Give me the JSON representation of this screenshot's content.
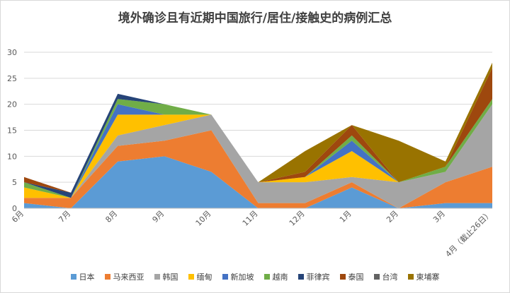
{
  "chart_data": {
    "type": "area",
    "stacked": true,
    "title": "境外确诊且有近期中国旅行/居住/接触史的病例汇总",
    "xlabel": "",
    "ylabel": "",
    "ylim": [
      0,
      30
    ],
    "yticks": [
      "0",
      "5",
      "10",
      "15",
      "20",
      "25",
      "30"
    ],
    "grid": true,
    "legend_position": "bottom",
    "categories": [
      "6月",
      "7月",
      "8月",
      "9月",
      "10月",
      "11月",
      "12月",
      "1月",
      "2月",
      "3月",
      "4月（截止26日）"
    ],
    "series": [
      {
        "name": "日本",
        "color": "#5b9bd5",
        "values": [
          1,
          0,
          9,
          10,
          7,
          0,
          0,
          4,
          0,
          1,
          1
        ]
      },
      {
        "name": "马来西亚",
        "color": "#ed7d31",
        "values": [
          1,
          2,
          3,
          3,
          8,
          1,
          1,
          1,
          0,
          4,
          7
        ]
      },
      {
        "name": "韩国",
        "color": "#a5a5a5",
        "values": [
          0,
          0,
          2,
          3,
          3,
          4,
          4,
          1,
          5,
          2,
          12
        ]
      },
      {
        "name": "缅甸",
        "color": "#ffc000",
        "values": [
          2,
          0,
          4,
          2,
          0,
          0,
          1,
          5,
          0,
          0,
          0
        ]
      },
      {
        "name": "新加坡",
        "color": "#4472c4",
        "values": [
          0,
          0,
          2,
          0,
          0,
          0,
          0,
          2,
          0,
          0,
          0
        ]
      },
      {
        "name": "越南",
        "color": "#70ad47",
        "values": [
          1,
          0,
          1,
          2,
          0,
          0,
          0,
          1,
          0,
          1,
          1
        ]
      },
      {
        "name": "菲律宾",
        "color": "#264478",
        "values": [
          0,
          1,
          1,
          0,
          0,
          0,
          0,
          0,
          0,
          0,
          0
        ]
      },
      {
        "name": "泰国",
        "color": "#9e480e",
        "values": [
          1,
          0,
          0,
          0,
          0,
          0,
          1,
          2,
          0,
          0,
          6
        ]
      },
      {
        "name": "台湾",
        "color": "#636363",
        "values": [
          0,
          0,
          0,
          0,
          0,
          0,
          0,
          0,
          0,
          0,
          0
        ]
      },
      {
        "name": "柬埔寨",
        "color": "#997300",
        "values": [
          0,
          0,
          0,
          0,
          0,
          0,
          4,
          0,
          8,
          1,
          1
        ]
      }
    ]
  }
}
